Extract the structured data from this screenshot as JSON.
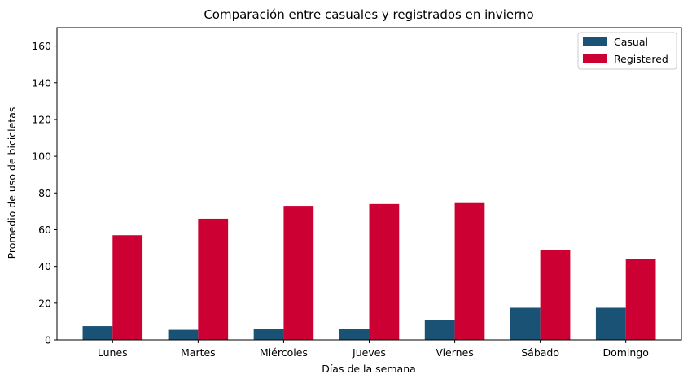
{
  "chart_data": {
    "type": "bar",
    "title": "Comparación entre casuales y registrados en invierno",
    "xlabel": "Días de la semana",
    "ylabel": "Promedio de uso de bicicletas",
    "categories": [
      "Lunes",
      "Martes",
      "Miércoles",
      "Jueves",
      "Viernes",
      "Sábado",
      "Domingo"
    ],
    "series": [
      {
        "name": "Casual",
        "color": "#1a5276",
        "values": [
          7.5,
          5.5,
          6,
          6,
          11,
          17.5,
          17.5
        ]
      },
      {
        "name": "Registered",
        "color": "#cc0033",
        "values": [
          57,
          66,
          73,
          74,
          74.5,
          49,
          44
        ]
      }
    ],
    "ylim": [
      0,
      170
    ],
    "yticks": [
      0,
      20,
      40,
      60,
      80,
      100,
      120,
      140,
      160
    ],
    "grid": false,
    "legend_position": "top-right"
  }
}
